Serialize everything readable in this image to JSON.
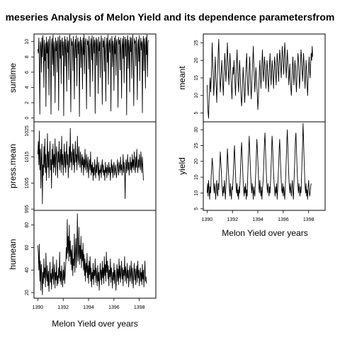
{
  "chart_data": {
    "type": "line",
    "title": "meseries Analysis of Melon Yield and its dependence parametersfrom",
    "xlabel": "Melon Yield over years",
    "xlim": [
      1389.7,
      1399.3
    ],
    "x_ticks": [
      "1390",
      "1392",
      "1394",
      "1396",
      "1398"
    ],
    "panels": [
      {
        "ylabel": "suntime",
        "ylim": [
          -0.5,
          11
        ],
        "y_ticks": [
          "0",
          "2",
          "4",
          "6",
          "8",
          "10"
        ],
        "x_start": 1390.0,
        "x_step": 0.04,
        "values": [
          9,
          8.5,
          10.5,
          7,
          0.5,
          10,
          9.5,
          6,
          10.5,
          8,
          10.8,
          9,
          4,
          10.2,
          7.5,
          9.8,
          1.5,
          10.6,
          8.5,
          10,
          6.5,
          10.3,
          3,
          9.5,
          10.7,
          8,
          0.5,
          9.6,
          10.4,
          7,
          10.9,
          5.5,
          10,
          9,
          2,
          10.5,
          8.8,
          10.1,
          6,
          9.7,
          10.6,
          1,
          9.3,
          10.8,
          7.8,
          10.2,
          4.5,
          9.9,
          10.5,
          8.2,
          10,
          0.3,
          9.4,
          10.7,
          6.8,
          10.3,
          9,
          3.5,
          10.6,
          8.6,
          10.1,
          5,
          9.8,
          10.9,
          7.2,
          0.8,
          10.4,
          9.5,
          10,
          6.2,
          10.7,
          8.9,
          2.5,
          9.6,
          10.3,
          7.9,
          10.8,
          4.2,
          9.2,
          10.5,
          8.4,
          10,
          0.2,
          9.7,
          10.6,
          6.6,
          10.2,
          9.1,
          3.8,
          10.5,
          8.3,
          10.9,
          5.8,
          9.9,
          10.4,
          7.4,
          1.2,
          10.3,
          9.6,
          10.1,
          6.4,
          10.7,
          8.7,
          2.8,
          9.5,
          10.4,
          7.6,
          10.8,
          4.8,
          9.1,
          10.6,
          8.5,
          10.2,
          0.6,
          9.8,
          10.5,
          6.9,
          10.3,
          9.2,
          3.2,
          10.6,
          8.8,
          10,
          5.3,
          9.7,
          10.8,
          7.7,
          1.8,
          10.4,
          9.3,
          10.1,
          6.1,
          10.6,
          8.2,
          2.2,
          9.4,
          10.5,
          7.3,
          10.9,
          4.4,
          9.6,
          10.2,
          8.6,
          10.4,
          0.9,
          9.5,
          10.7,
          6.7,
          10.1,
          9.4,
          3.6,
          10.5,
          8.4,
          10.8,
          5.6,
          9.9,
          10.3,
          7.5,
          1.4,
          10.6,
          9.7,
          10.2,
          6.3,
          10.5,
          8.8,
          2.6,
          9.3,
          10.4,
          7.8,
          10.7,
          4.6,
          9.5,
          10.6,
          8.1,
          10.3,
          0.4,
          9.9,
          10.8,
          6.5,
          10.2,
          9.3,
          3.4,
          10.6,
          8.7,
          10.5,
          5.2,
          9.6,
          10.9,
          7.1,
          1.6,
          10.4,
          9.8,
          10.1,
          6.8,
          10.6,
          8.5,
          2.4,
          9.7,
          10.3,
          7.4,
          10.8,
          4.9,
          9.2,
          10.5,
          8.9,
          10,
          0.7,
          9.6,
          10.7,
          6.2,
          10.4,
          9.5,
          3.9,
          10.6,
          8.3,
          10.9,
          5.4,
          9.8,
          10.2
        ]
      },
      {
        "ylabel": "press.mean",
        "ylim": [
          994.5,
          1028.5
        ],
        "y_ticks": [
          "995",
          "1005",
          "1015",
          "1025"
        ],
        "x_start": 1390.0,
        "x_step": 0.04,
        "values": [
          1016,
          1021,
          1012,
          1025,
          1010,
          1018,
          1003,
          1014,
          1020,
          997,
          1012,
          1008,
          1019,
          1011,
          1022,
          1009,
          1016,
          1006,
          1013,
          1024,
          1011,
          1017,
          1007,
          1015,
          1021,
          1010,
          1014,
          1003,
          1018,
          1012,
          1020,
          1009,
          1016,
          1011,
          1022,
          1008,
          1015,
          1019,
          1012,
          1007,
          1017,
          1013,
          1021,
          1010,
          1014,
          1018,
          1009,
          1023,
          1012,
          1016,
          1008,
          1014,
          1020,
          1011,
          1017,
          1009,
          1015,
          1021,
          1012,
          1016,
          1007,
          1014,
          1019,
          1011,
          1026,
          1013,
          1017,
          1010,
          1015,
          1020,
          1012,
          1018,
          1009,
          1014,
          1021,
          1013,
          1016,
          1010,
          1023,
          1015,
          1012,
          1019,
          1014,
          1011,
          1017,
          1013,
          1009,
          1016,
          1012,
          1015,
          1008,
          1014,
          1011,
          1018,
          1010,
          1013,
          1016,
          1009,
          1012,
          1015,
          1007,
          1011,
          1014,
          1010,
          1017,
          1008,
          1012,
          1009,
          1013,
          1006,
          1011,
          1008,
          1014,
          1010,
          1007,
          1012,
          1009,
          1015,
          1011,
          1008,
          1013,
          1006,
          1010,
          1009,
          1012,
          1007,
          1011,
          1014,
          1009,
          1012,
          1008,
          1010,
          1006,
          1013,
          1009,
          1011,
          1007,
          1012,
          1010,
          1008,
          1013,
          1009,
          1011,
          1006,
          1010,
          1014,
          1009,
          1012,
          1007,
          1011,
          1013,
          1008,
          1010,
          1012,
          1009,
          1007,
          1011,
          1014,
          1010,
          1008,
          1013,
          1011,
          1009,
          1015,
          1010,
          1012,
          1008,
          1011,
          1016,
          1009,
          1013,
          1010,
          999,
          1012,
          1014,
          1009,
          1011,
          1016,
          1010,
          1013,
          1008,
          1012,
          1015,
          1010,
          1013,
          1009,
          1016,
          1011,
          1014,
          1010,
          1017,
          1012,
          1009,
          1015,
          1011,
          1018,
          1012,
          1009,
          1014,
          1011,
          1016,
          1012,
          1010,
          1017,
          1013,
          1009,
          1015,
          1011,
          1006
        ]
      },
      {
        "ylabel": "humean",
        "ylim": [
          15,
          93
        ],
        "y_ticks": [
          "20",
          "40",
          "60",
          "80"
        ],
        "x_start": 1390.0,
        "x_step": 0.04,
        "values": [
          62,
          55,
          40,
          63,
          30,
          48,
          22,
          45,
          35,
          18,
          38,
          28,
          50,
          33,
          42,
          25,
          55,
          36,
          30,
          44,
          26,
          39,
          21,
          34,
          47,
          29,
          37,
          23,
          41,
          32,
          52,
          27,
          36,
          45,
          24,
          38,
          31,
          49,
          26,
          35,
          28,
          42,
          33,
          56,
          30,
          39,
          27,
          44,
          34,
          25,
          40,
          31,
          47,
          28,
          37,
          45,
          60,
          50,
          85,
          55,
          70,
          48,
          80,
          52,
          66,
          45,
          58,
          40,
          62,
          35,
          50,
          44,
          72,
          38,
          56,
          68,
          42,
          60,
          90,
          48,
          55,
          78,
          45,
          62,
          50,
          70,
          42,
          58,
          48,
          64,
          40,
          54,
          35,
          50,
          30,
          46,
          38,
          55,
          33,
          44,
          28,
          48,
          36,
          52,
          30,
          42,
          25,
          38,
          32,
          46,
          27,
          40,
          35,
          50,
          29,
          42,
          34,
          26,
          44,
          30,
          38,
          22,
          36,
          46,
          31,
          40,
          27,
          48,
          33,
          42,
          28,
          52,
          35,
          45,
          30,
          56,
          38,
          48,
          32,
          44,
          26,
          40,
          34,
          50,
          29,
          42,
          36,
          24,
          38,
          31,
          46,
          28,
          40,
          34,
          22,
          37,
          45,
          30,
          41,
          27,
          50,
          33,
          44,
          29,
          38,
          48,
          32,
          42,
          26,
          40,
          35,
          52,
          30,
          43,
          37,
          28,
          46,
          33,
          40,
          25,
          38,
          44,
          30,
          36,
          48,
          28,
          42,
          34,
          24,
          39,
          46,
          31,
          41,
          27,
          37,
          44,
          29,
          48,
          33,
          40,
          26,
          36,
          42,
          30,
          38,
          27,
          45,
          32,
          40,
          25,
          36,
          48,
          30,
          34,
          28
        ]
      },
      {
        "ylabel": "meant",
        "ylim": [
          2.5,
          27.5
        ],
        "y_ticks": [
          "5",
          "10",
          "15",
          "20",
          "25"
        ],
        "x_start": 1390.0,
        "x_step": 0.04,
        "values": [
          13,
          8,
          5,
          3.5,
          9,
          12,
          15,
          11,
          14,
          18,
          25,
          20,
          16,
          10,
          13,
          17,
          21,
          15,
          12,
          8,
          14,
          18,
          23,
          26,
          19,
          15,
          11,
          14,
          17,
          20,
          16,
          13,
          10,
          15,
          19,
          22,
          18,
          14,
          17,
          21,
          25,
          20,
          16,
          13,
          18,
          22,
          19,
          15,
          12,
          9,
          14,
          18,
          16,
          20,
          17,
          13,
          10,
          15,
          19,
          23,
          18,
          14,
          11,
          16,
          20,
          17,
          13,
          9,
          7,
          10,
          14,
          18,
          15,
          12,
          8,
          11,
          15,
          19,
          22,
          17,
          13,
          10,
          14,
          18,
          21,
          16,
          12,
          9,
          13,
          17,
          20,
          24,
          19,
          15,
          11,
          14,
          18,
          16,
          13,
          10,
          6,
          9,
          13,
          17,
          20,
          16,
          12,
          15,
          19,
          23,
          18,
          14,
          17,
          21,
          19,
          15,
          12,
          16,
          20,
          18,
          14,
          11,
          15,
          19,
          22,
          17,
          13,
          16,
          20,
          18,
          15,
          12,
          17,
          21,
          19,
          16,
          13,
          18,
          22,
          20,
          17,
          14,
          19,
          23,
          21,
          18,
          15,
          20,
          24,
          22,
          19,
          16,
          21,
          25,
          22,
          18,
          15,
          19,
          23,
          20,
          17,
          13,
          16,
          19,
          15,
          12,
          10,
          14,
          18,
          21,
          17,
          13,
          16,
          20,
          18,
          14,
          11,
          15,
          19,
          22,
          20,
          16,
          12,
          15,
          19,
          23,
          21,
          17,
          14,
          18,
          22,
          19,
          15,
          12,
          16,
          20,
          17,
          13,
          10,
          14,
          18,
          21,
          17,
          15,
          19,
          22,
          20,
          24,
          21
        ]
      },
      {
        "ylabel": "yield",
        "ylim": [
          4.5,
          32.5
        ],
        "y_ticks": [
          "5",
          "10",
          "15",
          "20",
          "25",
          "30"
        ],
        "x_start": 1390.0,
        "x_step": 0.04,
        "values": [
          10,
          13,
          9,
          14,
          11,
          8,
          12,
          10,
          15,
          18,
          21,
          19,
          16,
          12,
          10,
          13,
          11,
          8,
          12,
          14,
          10,
          9,
          13,
          11,
          16,
          19,
          23,
          20,
          17,
          13,
          11,
          9,
          12,
          10,
          14,
          11,
          8,
          12,
          15,
          18,
          24,
          21,
          17,
          14,
          11,
          9,
          13,
          10,
          8,
          12,
          11,
          14,
          17,
          22,
          25,
          20,
          16,
          12,
          10,
          13,
          9,
          11,
          8,
          12,
          10,
          14,
          18,
          23,
          26,
          22,
          18,
          14,
          11,
          9,
          12,
          10,
          13,
          8,
          11,
          9,
          15,
          20,
          24,
          28,
          23,
          19,
          15,
          12,
          10,
          13,
          11,
          8,
          12,
          10,
          9,
          13,
          17,
          22,
          27,
          24,
          20,
          16,
          12,
          10,
          14,
          11,
          9,
          12,
          8,
          11,
          13,
          16,
          21,
          26,
          29,
          24,
          19,
          15,
          12,
          10,
          13,
          11,
          9,
          12,
          10,
          14,
          18,
          23,
          28,
          25,
          20,
          16,
          13,
          11,
          9,
          12,
          10,
          13,
          8,
          11,
          15,
          19,
          24,
          27,
          22,
          18,
          14,
          11,
          10,
          13,
          9,
          12,
          10,
          8,
          12,
          16,
          21,
          26,
          30,
          25,
          20,
          15,
          12,
          10,
          13,
          11,
          9,
          12,
          14,
          10,
          8,
          13,
          17,
          22,
          27,
          29,
          24,
          19,
          15,
          12,
          10,
          13,
          11,
          9,
          12,
          10,
          15,
          20,
          25,
          32,
          27,
          21,
          16,
          12,
          10,
          13,
          9,
          11,
          8,
          12,
          14,
          11,
          9,
          10,
          12,
          13
        ]
      }
    ]
  }
}
